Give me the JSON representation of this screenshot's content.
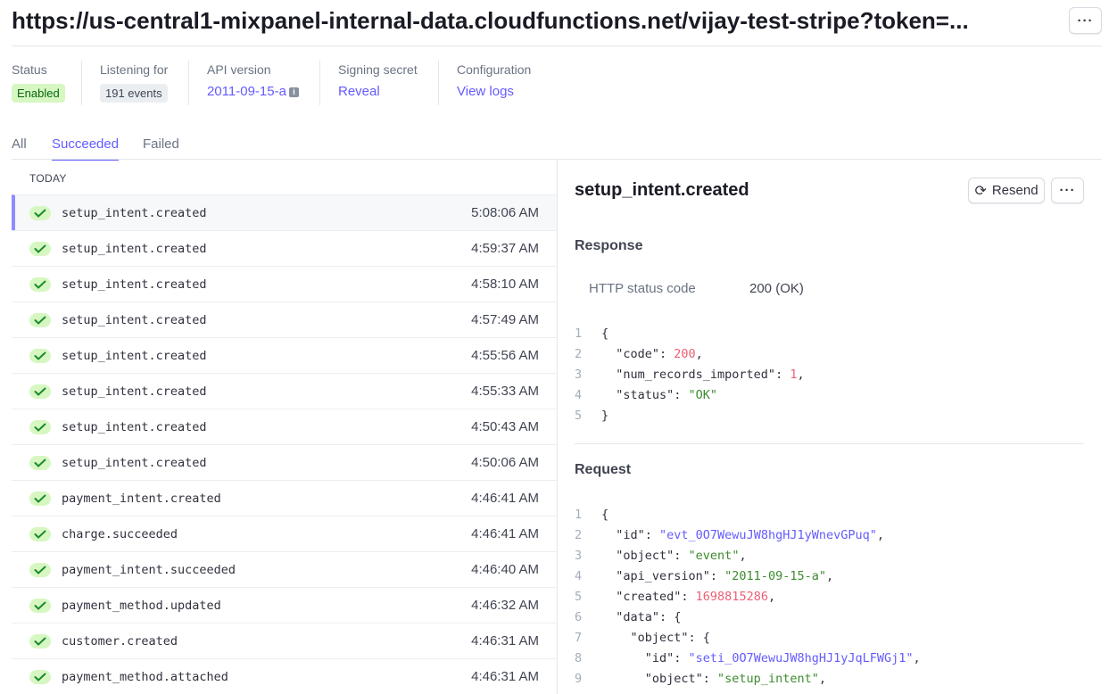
{
  "header": {
    "title": "https://us-central1-mixpanel-internal-data.cloudfunctions.net/vijay-test-stripe?token=...",
    "more_icon": "ellipsis-icon"
  },
  "meta": [
    {
      "label": "Status",
      "value": "Enabled"
    },
    {
      "label": "Listening for",
      "value": "191 events"
    },
    {
      "label": "API version",
      "value": "2011-09-15-a"
    },
    {
      "label": "Signing secret",
      "value": "Reveal"
    },
    {
      "label": "Configuration",
      "value": "View logs"
    }
  ],
  "tabs": [
    {
      "label": "All"
    },
    {
      "label": "Succeeded",
      "active": true
    },
    {
      "label": "Failed"
    }
  ],
  "list": {
    "group": "TODAY",
    "items": [
      {
        "name": "setup_intent.created",
        "time": "5:08:06 AM",
        "selected": true
      },
      {
        "name": "setup_intent.created",
        "time": "4:59:37 AM"
      },
      {
        "name": "setup_intent.created",
        "time": "4:58:10 AM"
      },
      {
        "name": "setup_intent.created",
        "time": "4:57:49 AM"
      },
      {
        "name": "setup_intent.created",
        "time": "4:55:56 AM"
      },
      {
        "name": "setup_intent.created",
        "time": "4:55:33 AM"
      },
      {
        "name": "setup_intent.created",
        "time": "4:50:43 AM"
      },
      {
        "name": "setup_intent.created",
        "time": "4:50:06 AM"
      },
      {
        "name": "payment_intent.created",
        "time": "4:46:41 AM"
      },
      {
        "name": "charge.succeeded",
        "time": "4:46:41 AM"
      },
      {
        "name": "payment_intent.succeeded",
        "time": "4:46:40 AM"
      },
      {
        "name": "payment_method.updated",
        "time": "4:46:32 AM"
      },
      {
        "name": "customer.created",
        "time": "4:46:31 AM"
      },
      {
        "name": "payment_method.attached",
        "time": "4:46:31 AM"
      }
    ]
  },
  "detail": {
    "title": "setup_intent.created",
    "resend_label": "Resend",
    "response_heading": "Response",
    "status_label": "HTTP status code",
    "status_value": "200 (OK)",
    "request_heading": "Request",
    "response_code": [
      [
        [
          "p",
          "{"
        ]
      ],
      [
        [
          "k",
          "  \"code\": "
        ],
        [
          "n",
          "200"
        ],
        [
          "p",
          ","
        ]
      ],
      [
        [
          "k",
          "  \"num_records_imported\": "
        ],
        [
          "n",
          "1"
        ],
        [
          "p",
          ","
        ]
      ],
      [
        [
          "k",
          "  \"status\": "
        ],
        [
          "s",
          "\"OK\""
        ]
      ],
      [
        [
          "p",
          "}"
        ]
      ]
    ],
    "request_code": [
      [
        [
          "p",
          "{"
        ]
      ],
      [
        [
          "k",
          "  \"id\": "
        ],
        [
          "b",
          "\"evt_0O7WewuJW8hgHJ1yWnevGPuq\""
        ],
        [
          "p",
          ","
        ]
      ],
      [
        [
          "k",
          "  \"object\": "
        ],
        [
          "s",
          "\"event\""
        ],
        [
          "p",
          ","
        ]
      ],
      [
        [
          "k",
          "  \"api_version\": "
        ],
        [
          "s",
          "\"2011-09-15-a\""
        ],
        [
          "p",
          ","
        ]
      ],
      [
        [
          "k",
          "  \"created\": "
        ],
        [
          "n",
          "1698815286"
        ],
        [
          "p",
          ","
        ]
      ],
      [
        [
          "k",
          "  \"data\": {"
        ]
      ],
      [
        [
          "k",
          "    \"object\": {"
        ]
      ],
      [
        [
          "k",
          "      \"id\": "
        ],
        [
          "b",
          "\"seti_0O7WewuJW8hgHJ1yJqLFWGj1\""
        ],
        [
          "p",
          ","
        ]
      ],
      [
        [
          "k",
          "      \"object\": "
        ],
        [
          "s",
          "\"setup_intent\""
        ],
        [
          "p",
          ","
        ]
      ]
    ]
  },
  "colors": {
    "accent": "#635bff",
    "success_bg": "#d7f7c2",
    "success": "#05690d"
  }
}
